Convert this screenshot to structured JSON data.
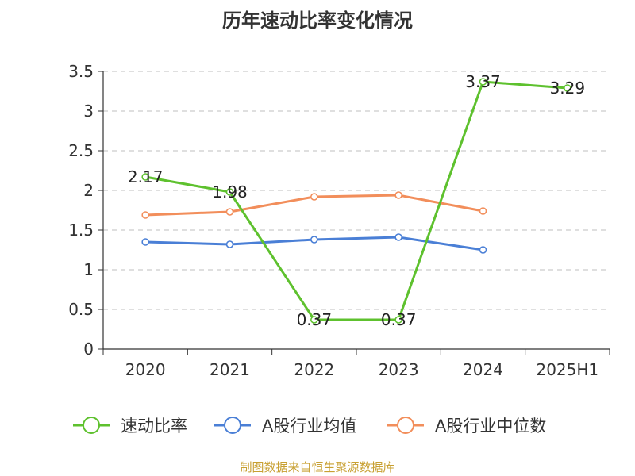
{
  "chart_data": {
    "type": "line",
    "title": "历年速动比率变化情况",
    "categories": [
      "2020",
      "2021",
      "2022",
      "2023",
      "2024",
      "2025H1"
    ],
    "ylim": [
      0,
      3.5
    ],
    "yticks": [
      "0",
      "0.5",
      "1",
      "1.5",
      "2",
      "2.5",
      "3",
      "3.5"
    ],
    "grid": true,
    "legend_position": "bottom",
    "series": [
      {
        "name": "速动比率",
        "color": "#5ec12e",
        "values": [
          2.17,
          1.98,
          0.37,
          0.37,
          3.37,
          3.29
        ],
        "labels": [
          "2.17",
          "1.98",
          "0.37",
          "0.37",
          "3.37",
          "3.29"
        ]
      },
      {
        "name": "A股行业均值",
        "color": "#4a7fd6",
        "values": [
          1.35,
          1.32,
          1.38,
          1.41,
          1.25,
          null
        ]
      },
      {
        "name": "A股行业中位数",
        "color": "#f28e5b",
        "values": [
          1.69,
          1.73,
          1.92,
          1.94,
          1.74,
          null
        ]
      }
    ]
  },
  "source": "制图数据来自恒生聚源数据库"
}
